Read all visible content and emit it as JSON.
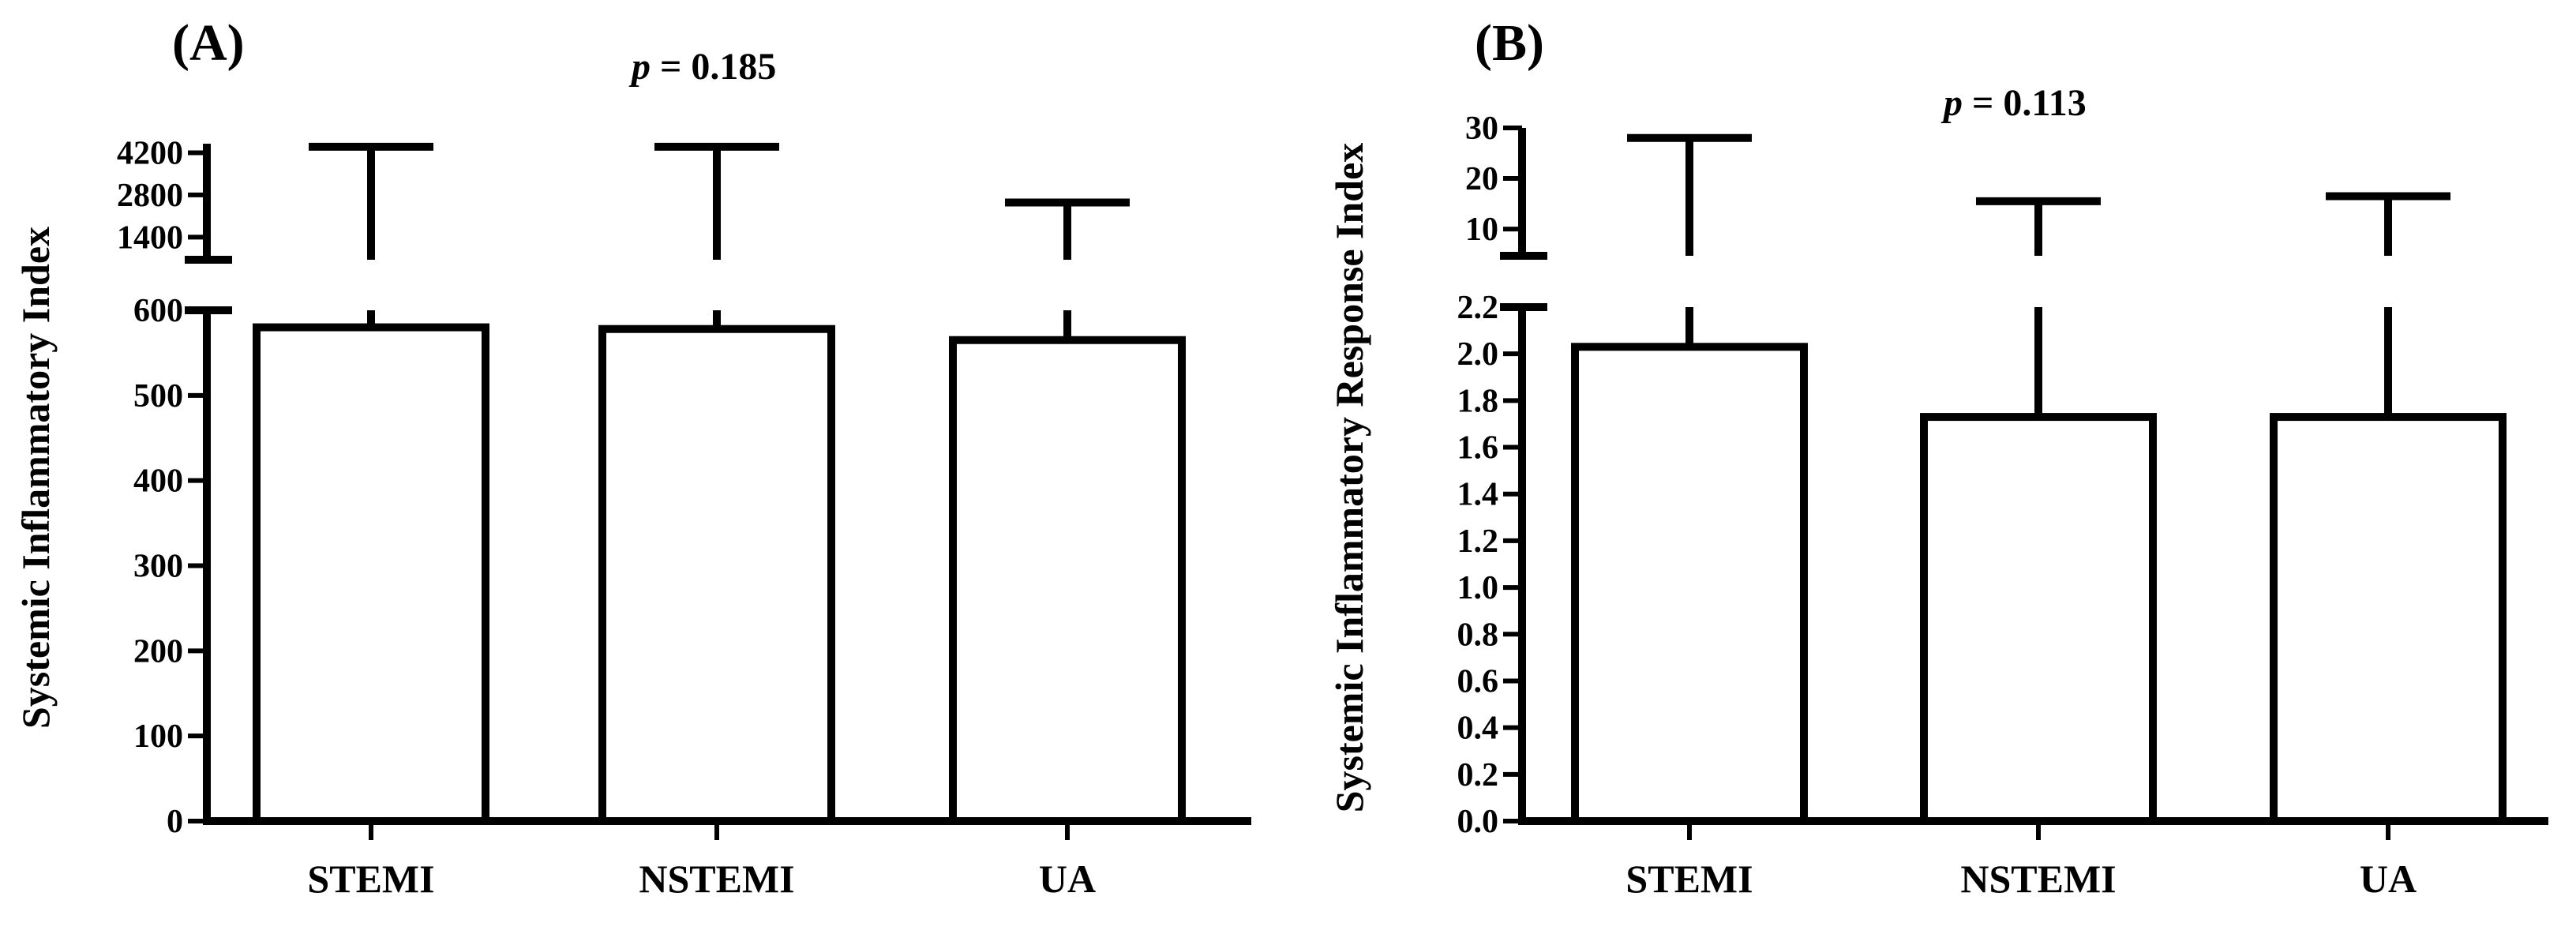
{
  "chart_data": [
    {
      "type": "bar",
      "panel_label": "(A)",
      "ylabel": "Systemic Inflammatory Index",
      "p_symbol": "p",
      "p_text": " = 0.185",
      "categories": [
        "STEMI",
        "NSTEMI",
        "UA"
      ],
      "values": [
        580,
        578,
        565
      ],
      "error_upper": [
        4400,
        4400,
        2550
      ],
      "y_break": true,
      "lower_ylim": [
        0,
        600
      ],
      "lower_ticks": [
        {
          "value": 0,
          "label": "0"
        },
        {
          "value": 100,
          "label": "100"
        },
        {
          "value": 200,
          "label": "200"
        },
        {
          "value": 300,
          "label": "300"
        },
        {
          "value": 400,
          "label": "400"
        },
        {
          "value": 500,
          "label": "500"
        },
        {
          "value": 600,
          "label": "600"
        }
      ],
      "upper_ylim": [
        650,
        4500
      ],
      "upper_ticks": [
        {
          "value": 1400,
          "label": "1400"
        },
        {
          "value": 2800,
          "label": "2800"
        },
        {
          "value": 4200,
          "label": "4200"
        }
      ]
    },
    {
      "type": "bar",
      "panel_label": "(B)",
      "ylabel": "Systemic Inflammatory  Response Index",
      "p_symbol": "p",
      "p_text": " = 0.113",
      "categories": [
        "STEMI",
        "NSTEMI",
        "UA"
      ],
      "values": [
        2.03,
        1.73,
        1.73
      ],
      "error_upper": [
        28,
        15.5,
        16.5
      ],
      "y_break": true,
      "lower_ylim": [
        0,
        2.2
      ],
      "lower_ticks": [
        {
          "value": 0.0,
          "label": "0.0"
        },
        {
          "value": 0.2,
          "label": "0.2"
        },
        {
          "value": 0.4,
          "label": "0.4"
        },
        {
          "value": 0.6,
          "label": "0.6"
        },
        {
          "value": 0.8,
          "label": "0.8"
        },
        {
          "value": 1.0,
          "label": "1.0"
        },
        {
          "value": 1.2,
          "label": "1.2"
        },
        {
          "value": 1.4,
          "label": "1.4"
        },
        {
          "value": 1.6,
          "label": "1.6"
        },
        {
          "value": 1.8,
          "label": "1.8"
        },
        {
          "value": 2.0,
          "label": "2.0"
        },
        {
          "value": 2.2,
          "label": "2.2"
        }
      ],
      "upper_ylim": [
        4.7,
        30
      ],
      "upper_ticks": [
        {
          "value": 10,
          "label": "10"
        },
        {
          "value": 20,
          "label": "20"
        },
        {
          "value": 30,
          "label": "30"
        }
      ]
    }
  ]
}
